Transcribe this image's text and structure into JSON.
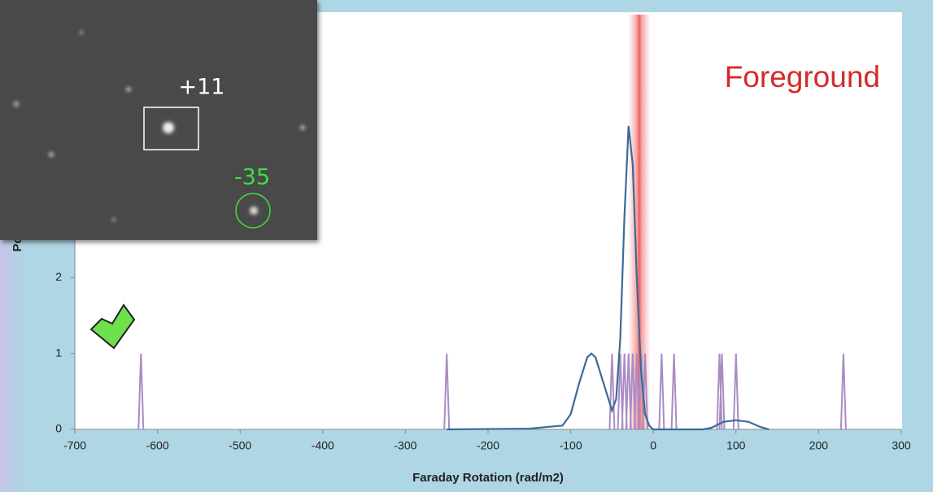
{
  "chart_data": {
    "type": "line",
    "xlabel": "Faraday Rotation (rad/m2)",
    "ylabel": "Po",
    "xlim": [
      -700,
      300
    ],
    "ylim": [
      0,
      5.5
    ],
    "xticks": [
      -700,
      -600,
      -500,
      -400,
      -300,
      -200,
      -100,
      0,
      100,
      200,
      300
    ],
    "yticks": [
      0,
      1,
      2
    ],
    "series": [
      {
        "color": "#3b6b97",
        "x": [
          -250,
          -150,
          -110,
          -100,
          -90,
          -80,
          -75,
          -70,
          -60,
          -50,
          -45,
          -40,
          -35,
          -30,
          -25,
          -20,
          -15,
          -10,
          -5,
          0,
          60,
          70,
          85,
          100,
          115,
          130,
          140
        ],
        "values": [
          0,
          0.01,
          0.05,
          0.2,
          0.6,
          0.95,
          1.0,
          0.95,
          0.6,
          0.25,
          0.4,
          1.2,
          2.8,
          4.0,
          3.5,
          2.0,
          0.8,
          0.2,
          0.05,
          0,
          0,
          0.02,
          0.1,
          0.12,
          0.1,
          0.03,
          0
        ]
      },
      {
        "color": "#a98cc4",
        "style": "spikes",
        "x": [
          -620,
          -250,
          -50,
          -40,
          -35,
          -30,
          -25,
          -20,
          -15,
          -10,
          10,
          25,
          80,
          83,
          100,
          230
        ],
        "values": [
          1,
          1,
          1,
          1,
          1,
          1,
          1,
          1,
          1,
          1,
          1,
          1,
          1,
          1,
          1,
          1
        ]
      }
    ],
    "annotation": {
      "text": "Foreground",
      "x": -17,
      "color": "#d42a2a"
    }
  },
  "inset": {
    "labels": [
      "+11",
      "-35"
    ]
  }
}
